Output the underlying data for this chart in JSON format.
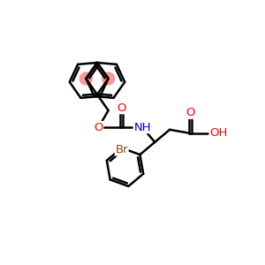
{
  "background_color": "#ffffff",
  "bond_color": "#000000",
  "atom_colors": {
    "O": "#ff0000",
    "N": "#0000cd",
    "Br": "#8b4513",
    "C": "#000000"
  },
  "highlight_color": "#ff8888",
  "bond_lw": 1.8,
  "font_size": 9.5
}
